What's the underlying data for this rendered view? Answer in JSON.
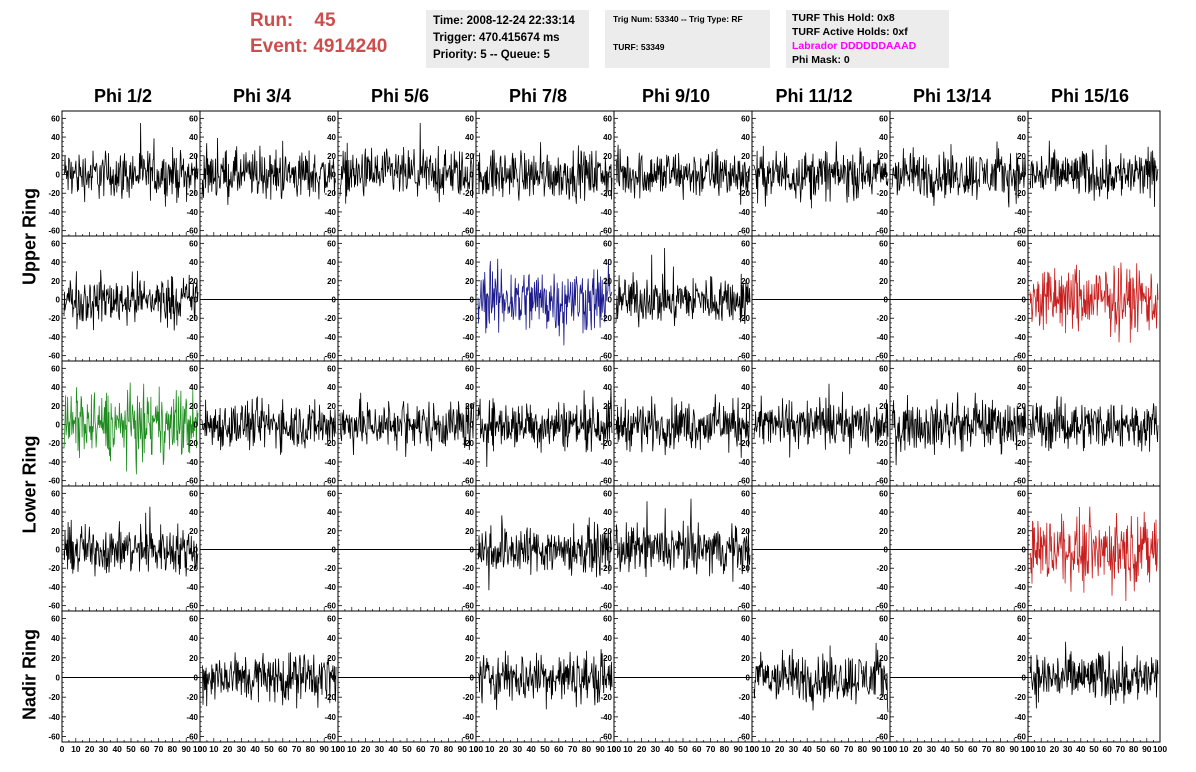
{
  "header": {
    "run_label": "Run:",
    "run_value": "45",
    "event_label": "Event:",
    "event_value": "4914240",
    "time": "Time: 2008-12-24 22:33:14",
    "trigger": "Trigger: 470.415674 ms",
    "priority": "Priority: 5 -- Queue: 5",
    "trig_num": "Trig Num: 53340 -- Trig Type: RF",
    "turf": "TURF: 53349",
    "turf_hold": "TURF This Hold: 0x8",
    "turf_active": "TURF Active Holds: 0xf",
    "labrador": "Labrador DDDDDDAAAD",
    "phi_mask": "Phi Mask: 0"
  },
  "columns": [
    "Phi 1/2",
    "Phi 3/4",
    "Phi 5/6",
    "Phi 7/8",
    "Phi 9/10",
    "Phi 11/12",
    "Phi 13/14",
    "Phi 15/16"
  ],
  "row_labels": [
    "Upper Ring",
    "Lower Ring",
    "Nadir Ring"
  ],
  "y_ticks": [
    "60",
    "40",
    "20",
    "0",
    "-20",
    "-40",
    "-60"
  ],
  "x_ticks": [
    "0",
    "10",
    "20",
    "30",
    "40",
    "50",
    "60",
    "70",
    "80",
    "90",
    "100"
  ],
  "colors": {
    "header_red": "#cc4d4d",
    "labrador_magenta": "#ff00ff",
    "trace_black": "#000000",
    "trace_blue": "#1a1a8c",
    "trace_green": "#1e8c1e",
    "trace_red": "#c81e1e"
  },
  "traces": [
    [
      "noise",
      "noise",
      "noise",
      "noise",
      "noise",
      "noise",
      "noise",
      "noise"
    ],
    [
      "noise",
      "flat",
      "flat",
      "noise-blue",
      "noise",
      "flat",
      "flat",
      "noise-red"
    ],
    [
      "noise-green",
      "noise",
      "noise",
      "noise",
      "noise",
      "noise",
      "noise",
      "noise"
    ],
    [
      "noise",
      "flat",
      "flat",
      "noise",
      "noise",
      "flat",
      "flat",
      "noise-red"
    ],
    [
      "flat",
      "noise",
      "flat",
      "noise",
      "flat",
      "noise",
      "flat",
      "noise"
    ]
  ]
}
